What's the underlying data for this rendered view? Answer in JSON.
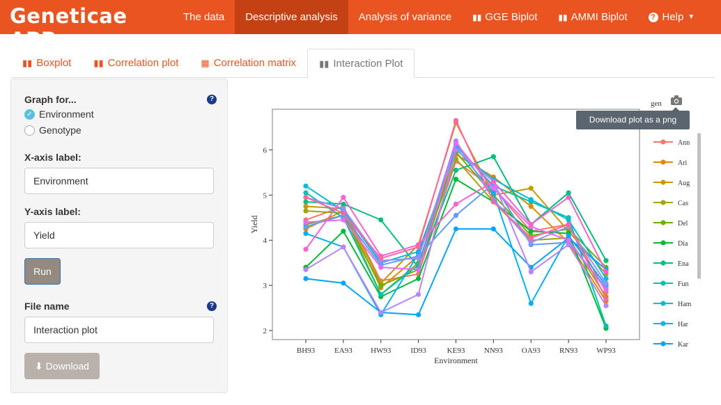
{
  "app": {
    "title": "Geneticae APP"
  },
  "nav": {
    "items": [
      {
        "label": "The data"
      },
      {
        "label": "Descriptive analysis"
      },
      {
        "label": "Analysis of variance"
      },
      {
        "label": "GGE Biplot"
      },
      {
        "label": "AMMI Biplot"
      },
      {
        "label": "Help"
      }
    ]
  },
  "tabs": [
    {
      "label": "Boxplot",
      "icon": "bar-chart-icon"
    },
    {
      "label": "Correlation plot",
      "icon": "bar-chart-icon"
    },
    {
      "label": "Correlation matrix",
      "icon": "table-icon"
    },
    {
      "label": "Interaction Plot",
      "icon": "bar-chart-icon"
    }
  ],
  "sidebar": {
    "graph_for_label": "Graph for...",
    "options": [
      {
        "label": "Environment",
        "checked": true
      },
      {
        "label": "Genotype",
        "checked": false
      }
    ],
    "xaxis_label": "X-axis label:",
    "xaxis_value": "Environment",
    "yaxis_label": "Y-axis label:",
    "yaxis_value": "Yield",
    "run_label": "Run",
    "file_name_label": "File name",
    "file_name_value": "Interaction plot",
    "download_label": "Download"
  },
  "plot": {
    "tooltip": "Download plot as a png",
    "legend_title": "gen"
  },
  "chart_data": {
    "type": "line",
    "x": [
      "BH93",
      "EA93",
      "HW93",
      "ID93",
      "KE93",
      "NN93",
      "OA93",
      "RN93",
      "WP93"
    ],
    "xlabel": "Environment",
    "ylabel": "Yield",
    "ylim": [
      1.8,
      6.9
    ],
    "yticks": [
      2,
      3,
      4,
      5,
      6
    ],
    "grid": false,
    "legend_position": "right",
    "series": [
      {
        "name": "Ann",
        "color": "#f8766d",
        "values": [
          4.45,
          4.75,
          3.1,
          3.25,
          5.75,
          5.15,
          4.2,
          4.35,
          2.85
        ]
      },
      {
        "name": "Ari",
        "color": "#e58700",
        "values": [
          4.25,
          4.65,
          2.95,
          3.65,
          5.9,
          5.4,
          4.75,
          3.95,
          2.65
        ]
      },
      {
        "name": "Aug",
        "color": "#c99800",
        "values": [
          4.75,
          4.7,
          3.05,
          3.9,
          6.6,
          5.0,
          5.15,
          4.2,
          3.25
        ]
      },
      {
        "name": "Cas",
        "color": "#a3a500",
        "values": [
          4.65,
          4.6,
          2.8,
          3.5,
          5.8,
          4.85,
          4.0,
          4.05,
          2.75
        ]
      },
      {
        "name": "Del",
        "color": "#6bb100",
        "values": [
          4.35,
          4.55,
          3.0,
          3.35,
          5.95,
          5.0,
          4.1,
          4.25,
          3.4
        ]
      },
      {
        "name": "Dia",
        "color": "#00ba38",
        "values": [
          3.4,
          4.2,
          2.75,
          3.15,
          5.35,
          4.85,
          4.2,
          4.15,
          2.05
        ]
      },
      {
        "name": "Ena",
        "color": "#00bf7d",
        "values": [
          4.85,
          4.8,
          4.45,
          3.4,
          5.55,
          5.85,
          4.35,
          5.05,
          3.55
        ]
      },
      {
        "name": "Fun",
        "color": "#00c0af",
        "values": [
          5.05,
          4.5,
          2.8,
          3.45,
          6.1,
          5.2,
          4.85,
          4.5,
          2.1
        ]
      },
      {
        "name": "Ham",
        "color": "#00bcd8",
        "values": [
          5.2,
          4.65,
          3.5,
          3.75,
          6.0,
          5.35,
          4.9,
          4.45,
          3.15
        ]
      },
      {
        "name": "Har",
        "color": "#00b0f6",
        "values": [
          4.15,
          3.85,
          2.35,
          3.7,
          6.05,
          5.05,
          2.6,
          4.1,
          3.0
        ]
      },
      {
        "name": "Kar",
        "color": "#00a5ff",
        "values": [
          3.15,
          3.05,
          2.4,
          2.35,
          4.25,
          4.25,
          3.4,
          4.05,
          3.35
        ]
      },
      {
        "name": "",
        "color": "#619cff",
        "values": [
          4.3,
          4.55,
          3.45,
          3.65,
          4.55,
          5.25,
          3.9,
          3.95,
          2.95
        ]
      },
      {
        "name": "",
        "color": "#9590ff",
        "values": [
          4.95,
          4.7,
          3.55,
          3.6,
          6.2,
          4.9,
          3.95,
          4.3,
          3.05
        ]
      },
      {
        "name": "",
        "color": "#b983ff",
        "values": [
          3.35,
          3.85,
          2.4,
          2.8,
          6.0,
          5.3,
          3.3,
          3.9,
          2.55
        ]
      },
      {
        "name": "",
        "color": "#e76bf3",
        "values": [
          4.4,
          4.45,
          3.4,
          3.35,
          6.15,
          5.15,
          4.3,
          4.0,
          2.9
        ]
      },
      {
        "name": "",
        "color": "#fd61d1",
        "values": [
          3.8,
          4.95,
          3.65,
          3.9,
          4.8,
          5.3,
          4.35,
          4.95,
          3.3
        ]
      },
      {
        "name": "",
        "color": "#ff67a4",
        "values": [
          4.95,
          4.6,
          3.6,
          3.85,
          6.65,
          4.85,
          4.05,
          4.35,
          2.7
        ]
      }
    ]
  }
}
